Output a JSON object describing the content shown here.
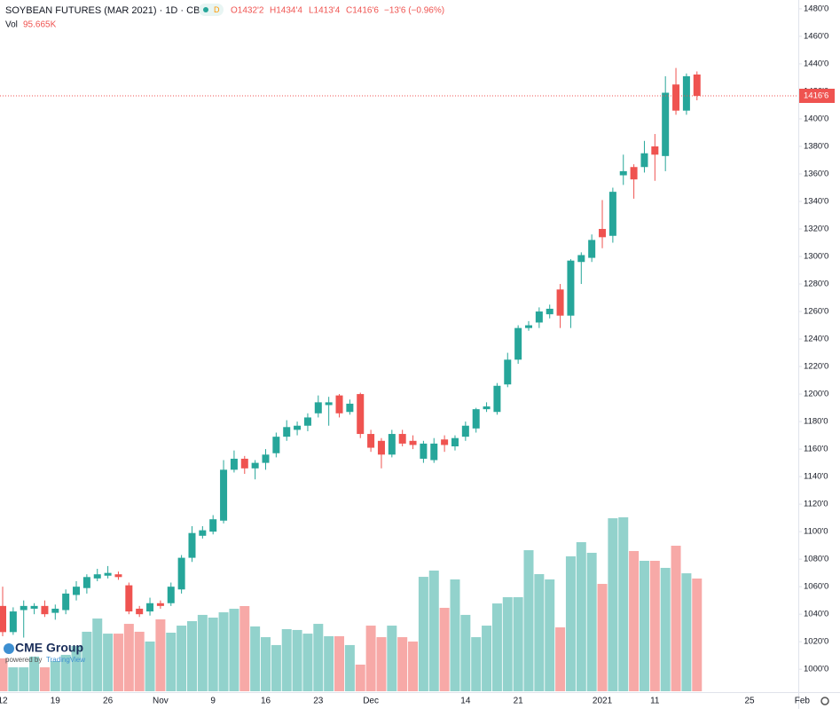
{
  "chart_data": {
    "type": "candlestick",
    "title": "SOYBEAN FUTURES (MAR 2021) · 1D · CBOT",
    "badge": "D",
    "ohlc_labels": [
      "O1432'2",
      "H1434'4",
      "L1413'4",
      "C1416'6",
      "−13'6 (−0.96%)"
    ],
    "volume_label": "Vol",
    "volume_value_label": "95.665K",
    "up_color": "#26a69a",
    "down_color": "#ef5350",
    "volume_up_color": "#92d2cc",
    "volume_down_color": "#f7a9a7",
    "grid": false,
    "categories": [
      "12",
      null,
      null,
      null,
      null,
      "19",
      null,
      null,
      null,
      null,
      "26",
      null,
      null,
      null,
      null,
      "Nov",
      null,
      null,
      null,
      null,
      "9",
      null,
      null,
      null,
      null,
      "16",
      null,
      null,
      null,
      null,
      "23",
      null,
      null,
      null,
      null,
      "Dec",
      null,
      null,
      null,
      null,
      null,
      null,
      null,
      null,
      "14",
      null,
      null,
      null,
      null,
      "21",
      null,
      null,
      null,
      null,
      null,
      null,
      null,
      "2021",
      null,
      null,
      null,
      null,
      "11",
      null,
      null,
      null,
      null,
      null,
      null,
      null,
      null,
      "25",
      null,
      null,
      null,
      null,
      "Feb"
    ],
    "open": [
      1046,
      1027,
      1043,
      1044,
      1046,
      1041,
      1043,
      1054,
      1059,
      1066,
      1068,
      1069,
      1061,
      1044,
      1042,
      1048,
      1048,
      1058,
      1081,
      1097,
      1100,
      1108,
      1145,
      1153,
      1146,
      1150,
      1157,
      1169,
      1174,
      1177,
      1186,
      1192,
      1199,
      1187,
      1200,
      1171,
      1166,
      1156,
      1171,
      1166,
      1153,
      1152,
      1167,
      1162,
      1169,
      1175,
      1189,
      1187,
      1207,
      1225,
      1248,
      1252,
      1258,
      1276,
      1257,
      1296,
      1299,
      1320,
      1315,
      1359,
      1365,
      1365,
      1380,
      1373,
      1425,
      1406,
      1432.25,
      null,
      null,
      null,
      null,
      null,
      null,
      null,
      null,
      null,
      null
    ],
    "high": [
      1060,
      1045,
      1050,
      1048,
      1050,
      1047,
      1058,
      1064,
      1069,
      1073,
      1075,
      1071,
      1063,
      1046,
      1052,
      1050,
      1063,
      1083,
      1104,
      1104,
      1112,
      1152,
      1159,
      1155,
      1152,
      1160,
      1172,
      1181,
      1180,
      1186,
      1199,
      1198,
      1200,
      1196,
      1201,
      1174,
      1168,
      1174,
      1174,
      1170,
      1166,
      1168,
      1170,
      1170,
      1180,
      1190,
      1194,
      1208,
      1230,
      1250,
      1253,
      1263,
      1265,
      1280,
      1298,
      1303,
      1316,
      1341,
      1350,
      1374,
      1367,
      1384,
      1389,
      1431,
      1437,
      1433,
      1434.5,
      null,
      null,
      null,
      null,
      null,
      null,
      null,
      null,
      null,
      null
    ],
    "low": [
      1024,
      1025,
      1023,
      1040,
      1038,
      1036,
      1040,
      1050,
      1055,
      1064,
      1066,
      1065,
      1040,
      1038,
      1039,
      1044,
      1046,
      1055,
      1078,
      1095,
      1098,
      1106,
      1143,
      1142,
      1138,
      1145,
      1154,
      1166,
      1170,
      1173,
      1183,
      1177,
      1183,
      1185,
      1168,
      1158,
      1146,
      1154,
      1162,
      1160,
      1150,
      1150,
      1158,
      1159,
      1166,
      1172,
      1187,
      1185,
      1205,
      1222,
      1246,
      1248,
      1255,
      1248,
      1248,
      1280,
      1296,
      1306,
      1310,
      1352,
      1342,
      1361,
      1355,
      1362,
      1403,
      1403,
      1413.5,
      null,
      null,
      null,
      null,
      null,
      null,
      null,
      null,
      null,
      null
    ],
    "close": [
      1027,
      1042,
      1046,
      1046,
      1040,
      1044,
      1055,
      1060,
      1067,
      1069,
      1070,
      1067,
      1042,
      1040,
      1048,
      1046,
      1060,
      1081,
      1099,
      1101,
      1109,
      1145,
      1153,
      1146,
      1150,
      1156,
      1169,
      1176,
      1177,
      1183,
      1194,
      1194,
      1186,
      1193,
      1171,
      1161,
      1156,
      1171,
      1164,
      1163,
      1164,
      1164,
      1163,
      1168,
      1177,
      1189,
      1191,
      1206,
      1225,
      1248,
      1250,
      1260,
      1262,
      1257,
      1297,
      1301,
      1312,
      1314,
      1347,
      1362,
      1356,
      1375,
      1374,
      1419,
      1406,
      1431,
      1416.75,
      null,
      null,
      null,
      null,
      null,
      null,
      null,
      null,
      null,
      null
    ],
    "volume": [
      27900,
      20300,
      20300,
      29400,
      20300,
      25600,
      30900,
      38400,
      50500,
      61700,
      48900,
      48900,
      57200,
      50500,
      42200,
      61000,
      49700,
      55700,
      59500,
      64800,
      62500,
      67000,
      70000,
      72300,
      55000,
      45900,
      39200,
      52700,
      52000,
      48900,
      57200,
      46700,
      46700,
      39200,
      22600,
      55700,
      45900,
      55700,
      45900,
      42200,
      97100,
      102400,
      70800,
      94900,
      64800,
      45900,
      55700,
      74500,
      79800,
      79800,
      119700,
      99400,
      94900,
      54200,
      114500,
      126500,
      117500,
      91100,
      146800,
      147600,
      119000,
      110700,
      110700,
      104700,
      123500,
      100100,
      95665,
      null,
      null,
      null,
      null,
      null,
      null,
      null,
      null,
      null,
      null
    ],
    "ylim": [
      984,
      1486.4
    ],
    "volume_lim": [
      0,
      586600
    ],
    "yticks": [
      {
        "value": 1000,
        "label": "1000'0"
      },
      {
        "value": 1020,
        "label": "1020'0"
      },
      {
        "value": 1040,
        "label": "1040'0"
      },
      {
        "value": 1060,
        "label": "1060'0"
      },
      {
        "value": 1080,
        "label": "1080'0"
      },
      {
        "value": 1100,
        "label": "1100'0"
      },
      {
        "value": 1120,
        "label": "1120'0"
      },
      {
        "value": 1140,
        "label": "1140'0"
      },
      {
        "value": 1160,
        "label": "1160'0"
      },
      {
        "value": 1180,
        "label": "1180'0"
      },
      {
        "value": 1200,
        "label": "1200'0"
      },
      {
        "value": 1220,
        "label": "1220'0"
      },
      {
        "value": 1240,
        "label": "1240'0"
      },
      {
        "value": 1260,
        "label": "1260'0"
      },
      {
        "value": 1280,
        "label": "1280'0"
      },
      {
        "value": 1300,
        "label": "1300'0"
      },
      {
        "value": 1320,
        "label": "1320'0"
      },
      {
        "value": 1340,
        "label": "1340'0"
      },
      {
        "value": 1360,
        "label": "1360'0"
      },
      {
        "value": 1380,
        "label": "1380'0"
      },
      {
        "value": 1400,
        "label": "1400'0"
      },
      {
        "value": 1420,
        "label": "1420'0"
      },
      {
        "value": 1440,
        "label": "1440'0"
      },
      {
        "value": 1460,
        "label": "1460'0"
      },
      {
        "value": 1480,
        "label": "1480'0"
      }
    ],
    "last_price": {
      "value": 1416.75,
      "label": "1416'6"
    }
  },
  "logo": {
    "name": "CME Group",
    "powered": "powered by",
    "brand": "TradingView"
  }
}
